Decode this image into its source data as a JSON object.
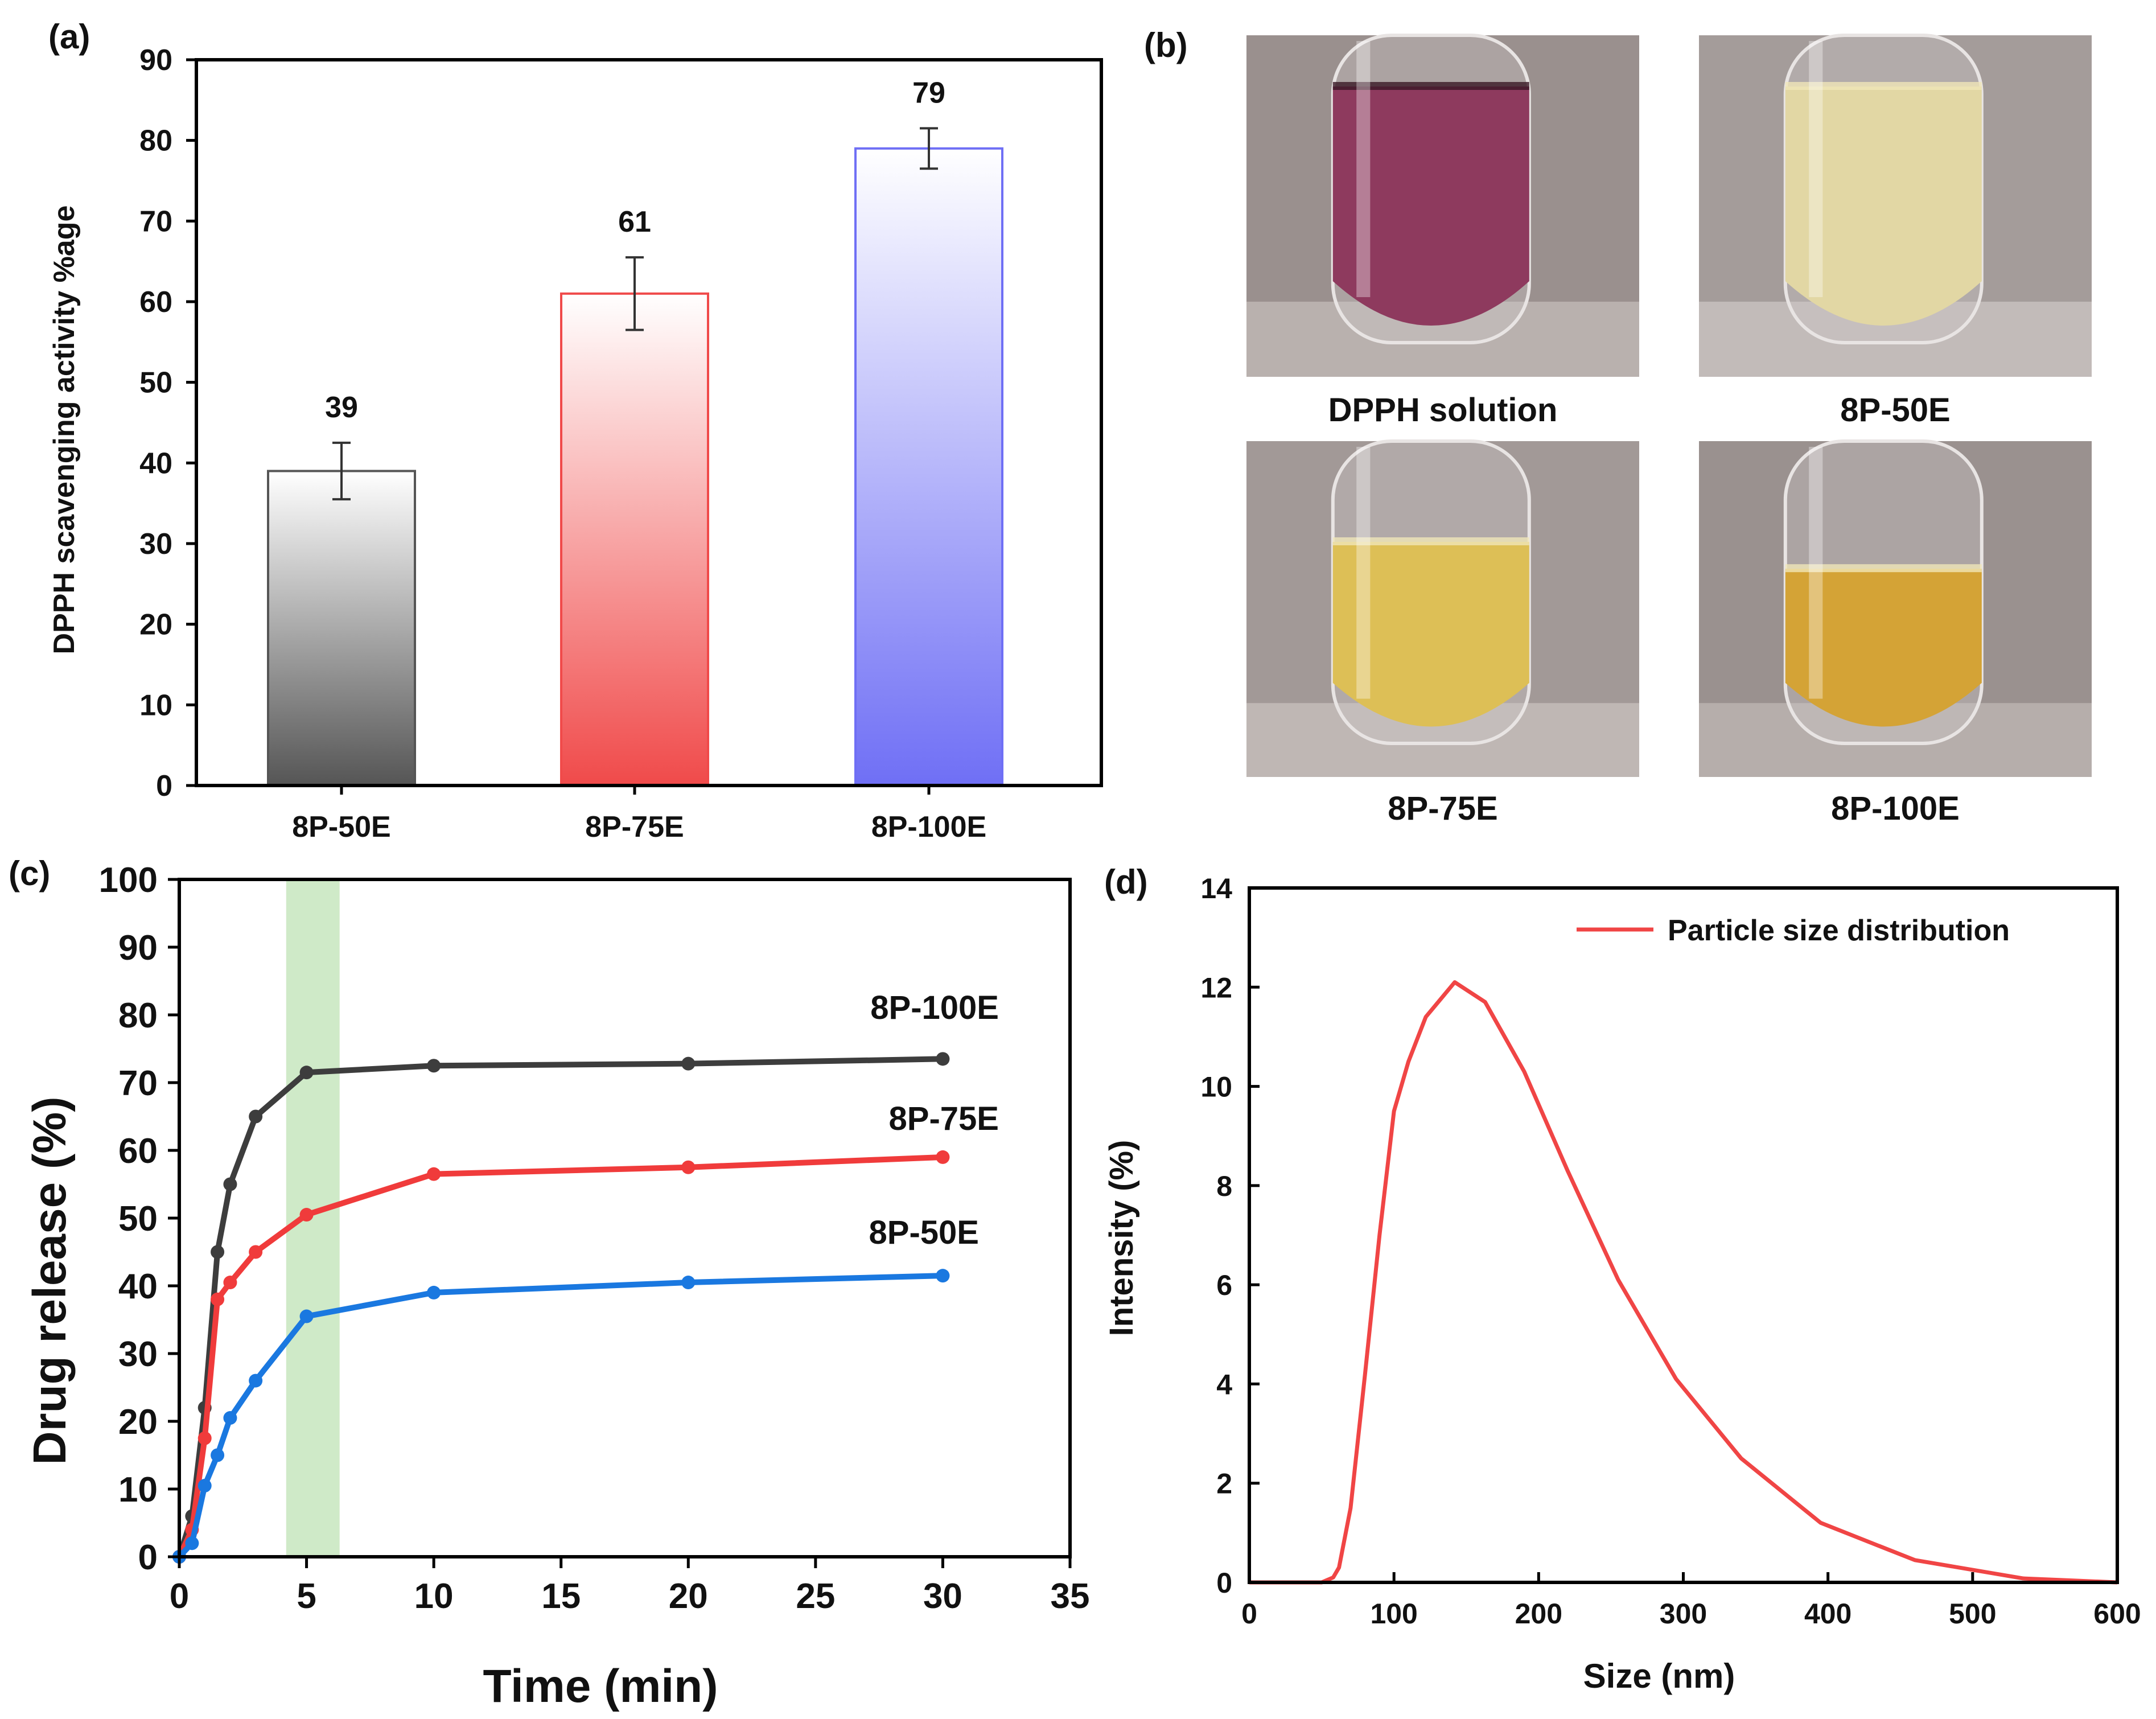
{
  "panels": {
    "a": "(a)",
    "b": "(b)",
    "c": "(c)",
    "d": "(d)"
  },
  "photos": {
    "labels": [
      "DPPH solution",
      "8P-50E",
      "8P-75E",
      "8P-100E"
    ],
    "liquid_colors": [
      "#8e3a5e",
      "#e2d7a4",
      "#ddbf56",
      "#d4a336"
    ],
    "wall_colors": [
      "#9a908e",
      "#a49c9a",
      "#a29997",
      "#9a918f"
    ],
    "table_colors": [
      "#b9b1ae",
      "#c2bbb9",
      "#bfb7b4",
      "#b6aeab"
    ]
  },
  "chart_data": [
    {
      "id": "a",
      "type": "bar",
      "title": "",
      "xlabel": "",
      "ylabel": "DPPH scavenging activity %age",
      "categories": [
        "8P-50E",
        "8P-75E",
        "8P-100E"
      ],
      "values": [
        39,
        61,
        79
      ],
      "errors": [
        3.5,
        4.5,
        2.5
      ],
      "data_labels": [
        "39",
        "61",
        "79"
      ],
      "bar_colors": [
        "#555555",
        "#f04a4a",
        "#6f6ff5"
      ],
      "ylim": [
        0,
        90
      ],
      "yticks": [
        0,
        10,
        20,
        30,
        40,
        50,
        60,
        70,
        80,
        90
      ],
      "grid": false
    },
    {
      "id": "c",
      "type": "line",
      "xlabel": "Time (min)",
      "ylabel": "Drug release (%)",
      "xlim": [
        0,
        35
      ],
      "ylim": [
        0,
        100
      ],
      "xticks": [
        0,
        5,
        10,
        15,
        20,
        25,
        30,
        35
      ],
      "yticks": [
        0,
        10,
        20,
        30,
        40,
        50,
        60,
        70,
        80,
        90,
        100
      ],
      "highlight_band": [
        4.2,
        6.3
      ],
      "highlight_color": "#a8d99a",
      "series": [
        {
          "name": "8P-100E",
          "color": "#3d3d3d",
          "x": [
            0,
            0.5,
            1,
            1.5,
            2,
            3,
            5,
            10,
            20,
            30
          ],
          "y": [
            0,
            6,
            22,
            45,
            55,
            65,
            71.5,
            72.5,
            72.8,
            73.5
          ]
        },
        {
          "name": "8P-75E",
          "color": "#f03b3b",
          "x": [
            0,
            0.5,
            1,
            1.5,
            2,
            3,
            5,
            10,
            20,
            30
          ],
          "y": [
            0,
            4,
            17.5,
            38,
            40.5,
            45,
            50.5,
            56.5,
            57.5,
            59
          ]
        },
        {
          "name": "8P-50E",
          "color": "#1a78e0",
          "x": [
            0,
            0.5,
            1,
            1.5,
            2,
            3,
            5,
            10,
            20,
            30
          ],
          "y": [
            0,
            2,
            10.5,
            15,
            20.5,
            26,
            35.5,
            39,
            40.5,
            41.5
          ]
        }
      ],
      "series_labels": [
        "8P-100E",
        "8P-75E",
        "8P-50E"
      ],
      "grid": false
    },
    {
      "id": "d",
      "type": "line",
      "xlabel": "Size (nm)",
      "ylabel": "Intensity (%)",
      "xlim": [
        0,
        600
      ],
      "ylim": [
        0,
        14
      ],
      "xticks": [
        0,
        100,
        200,
        300,
        400,
        500,
        600
      ],
      "yticks": [
        0,
        2,
        4,
        6,
        8,
        10,
        12,
        14
      ],
      "legend": "top-right",
      "series": [
        {
          "name": "Particle size distribution",
          "color": "#f04545",
          "x": [
            0,
            50,
            58,
            62,
            70,
            80,
            90,
            100,
            110,
            122,
            142,
            163,
            190,
            220,
            255,
            295,
            340,
            395,
            460,
            535,
            600
          ],
          "y": [
            0,
            0,
            0.1,
            0.3,
            1.5,
            4.2,
            7,
            9.5,
            10.5,
            11.4,
            12.1,
            11.7,
            10.3,
            8.3,
            6.1,
            4.1,
            2.5,
            1.2,
            0.45,
            0.08,
            0
          ]
        }
      ],
      "grid": false
    }
  ]
}
